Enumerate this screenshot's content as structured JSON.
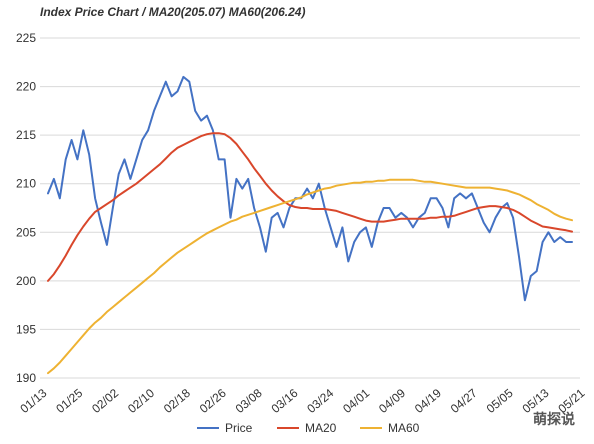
{
  "chart_data": {
    "type": "line",
    "title": "Index Price Chart / MA20(205.07) MA60(206.24)",
    "ylim": [
      190,
      225
    ],
    "yticks": [
      190,
      195,
      200,
      205,
      210,
      215,
      220,
      225
    ],
    "x_tick_labels": [
      "01/13",
      "01/25",
      "02/02",
      "02/10",
      "02/18",
      "02/26",
      "03/08",
      "03/16",
      "03/24",
      "04/01",
      "04/09",
      "04/19",
      "04/27",
      "05/05",
      "05/13",
      "05/21"
    ],
    "num_points": 90,
    "grid": true,
    "legend_position": "bottom",
    "series": [
      {
        "name": "Price",
        "color": "#4472c4",
        "values": [
          209.0,
          210.5,
          208.5,
          212.5,
          214.5,
          212.5,
          215.5,
          213.0,
          208.5,
          206.0,
          203.7,
          207.5,
          211.0,
          212.5,
          210.5,
          212.5,
          214.5,
          215.5,
          217.5,
          219.0,
          220.5,
          219.0,
          219.5,
          221.0,
          220.5,
          217.5,
          216.5,
          217.0,
          215.5,
          212.5,
          212.5,
          206.5,
          210.5,
          209.5,
          210.5,
          207.5,
          205.5,
          203.0,
          206.5,
          207.0,
          205.5,
          207.5,
          208.5,
          208.5,
          209.5,
          208.5,
          210.0,
          207.5,
          205.5,
          203.5,
          205.5,
          202.0,
          204.0,
          205.0,
          205.5,
          203.5,
          206.0,
          207.5,
          207.5,
          206.5,
          207.0,
          206.5,
          205.5,
          206.5,
          207.0,
          208.5,
          208.5,
          207.5,
          205.5,
          208.5,
          209.0,
          208.5,
          209.0,
          207.5,
          206.0,
          205.0,
          206.5,
          207.5,
          208.0,
          206.5,
          202.5,
          198.0,
          200.5,
          201.0,
          204.0,
          205.0,
          204.0,
          204.5,
          204.0,
          204.0
        ],
        "data_labels": []
      },
      {
        "name": "MA20",
        "color": "#d9472b",
        "values": [
          200.0,
          200.7,
          201.6,
          202.6,
          203.7,
          204.7,
          205.6,
          206.4,
          207.1,
          207.5,
          207.9,
          208.3,
          208.8,
          209.2,
          209.6,
          210.0,
          210.5,
          211.0,
          211.5,
          212.0,
          212.6,
          213.2,
          213.7,
          214.0,
          214.3,
          214.6,
          214.9,
          215.1,
          215.2,
          215.2,
          215.1,
          214.7,
          214.1,
          213.3,
          212.5,
          211.6,
          210.8,
          210.0,
          209.3,
          208.7,
          208.2,
          207.8,
          207.6,
          207.5,
          207.5,
          207.4,
          207.4,
          207.4,
          207.3,
          207.2,
          207.0,
          206.8,
          206.6,
          206.4,
          206.2,
          206.1,
          206.1,
          206.1,
          206.2,
          206.3,
          206.4,
          206.4,
          206.4,
          206.4,
          206.4,
          206.5,
          206.5,
          206.6,
          206.6,
          206.7,
          206.9,
          207.1,
          207.3,
          207.5,
          207.6,
          207.7,
          207.7,
          207.6,
          207.5,
          207.3,
          207.0,
          206.6,
          206.2,
          205.9,
          205.6,
          205.5,
          205.4,
          205.3,
          205.2,
          205.07
        ],
        "data_labels": []
      },
      {
        "name": "MA60",
        "color": "#eeb232",
        "values": [
          190.5,
          191.0,
          191.6,
          192.3,
          193.0,
          193.7,
          194.4,
          195.1,
          195.7,
          196.2,
          196.8,
          197.3,
          197.8,
          198.3,
          198.8,
          199.3,
          199.8,
          200.3,
          200.8,
          201.4,
          201.9,
          202.4,
          202.9,
          203.3,
          203.7,
          204.1,
          204.5,
          204.9,
          205.2,
          205.5,
          205.8,
          206.1,
          206.3,
          206.6,
          206.8,
          207.0,
          207.2,
          207.4,
          207.6,
          207.8,
          208.0,
          208.2,
          208.4,
          208.6,
          208.9,
          209.1,
          209.3,
          209.5,
          209.6,
          209.8,
          209.9,
          210.0,
          210.1,
          210.1,
          210.2,
          210.2,
          210.3,
          210.3,
          210.4,
          210.4,
          210.4,
          210.4,
          210.4,
          210.3,
          210.2,
          210.2,
          210.1,
          210.0,
          209.9,
          209.8,
          209.7,
          209.6,
          209.6,
          209.6,
          209.6,
          209.6,
          209.5,
          209.4,
          209.3,
          209.1,
          208.9,
          208.6,
          208.3,
          207.9,
          207.6,
          207.3,
          206.9,
          206.6,
          206.4,
          206.24
        ],
        "data_labels": []
      }
    ]
  },
  "watermark": "萌探说"
}
